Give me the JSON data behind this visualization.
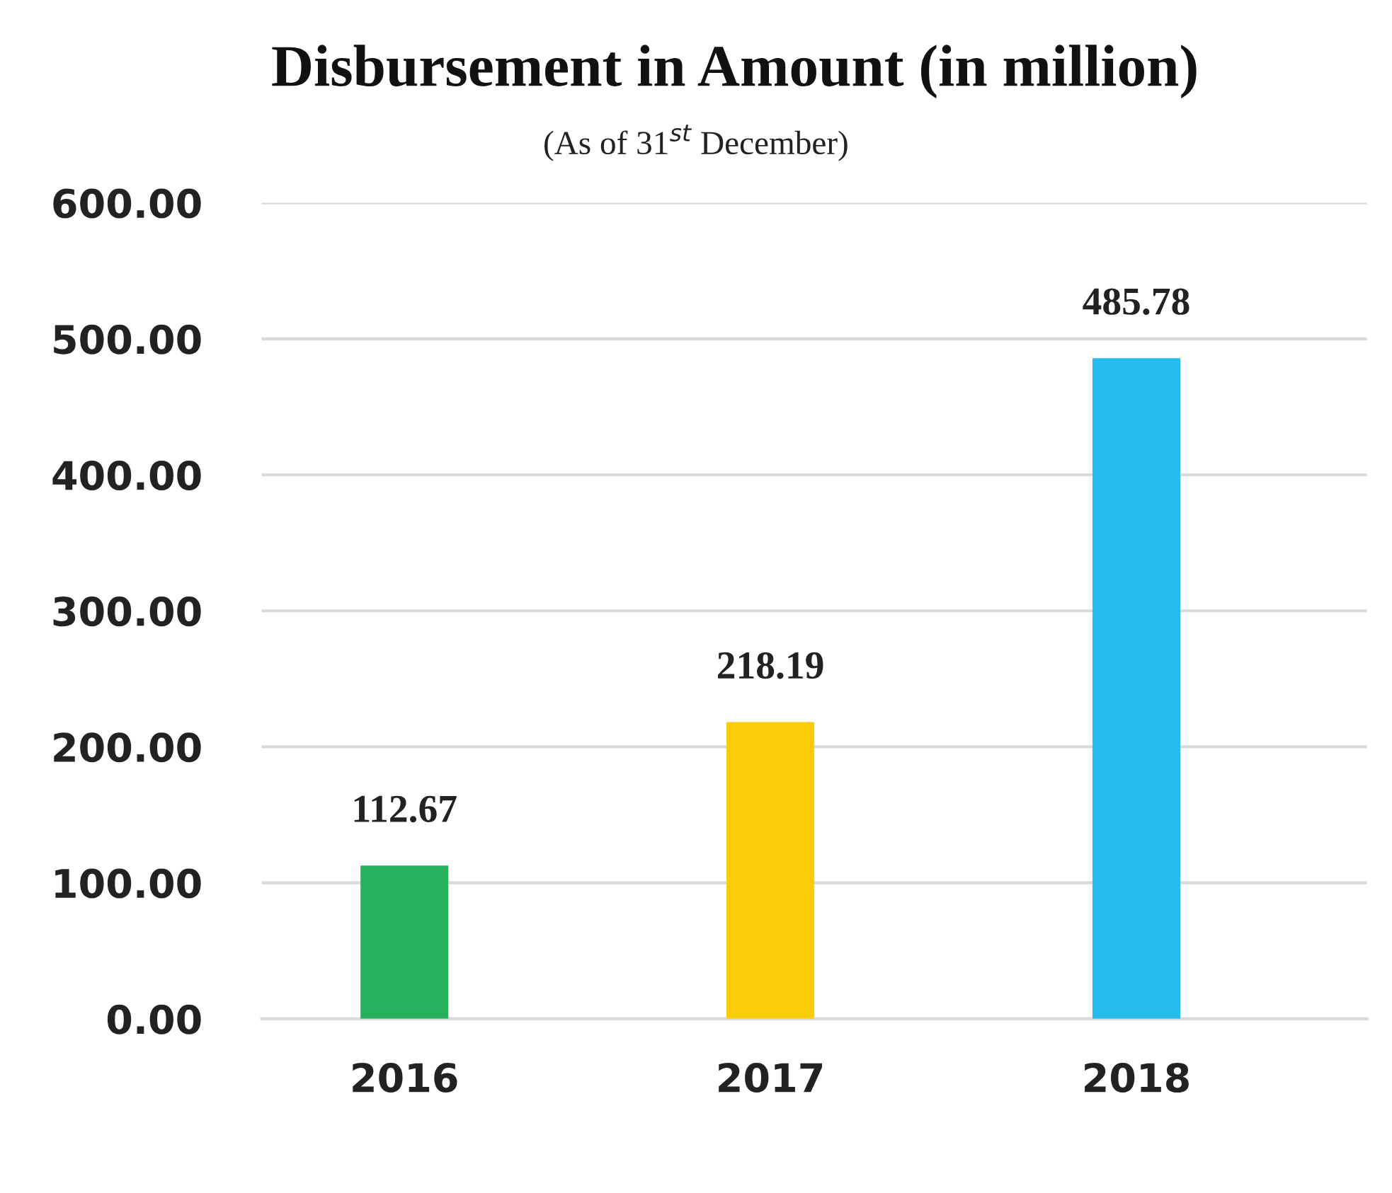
{
  "chart_data": {
    "type": "bar",
    "title": "Disbursement in Amount (in million)",
    "subtitle": "(As of 31$^{st}$ December)",
    "categories": [
      "2016",
      "2017",
      "2018"
    ],
    "values": [
      112.67,
      218.19,
      485.78
    ],
    "colors": [
      "#27b15d",
      "#fccb0a",
      "#26bdee"
    ],
    "ylim": [
      0,
      600
    ],
    "yticks": [
      {
        "value": 0,
        "label": "0.00"
      },
      {
        "value": 100,
        "label": "100.00"
      },
      {
        "value": 200,
        "label": "200.00"
      },
      {
        "value": 300,
        "label": "300.00"
      },
      {
        "value": 400,
        "label": "400.00"
      },
      {
        "value": 500,
        "label": "500.00"
      },
      {
        "value": 600,
        "label": "600.00"
      }
    ],
    "grid": "y",
    "data_labels": true,
    "legend": false
  }
}
